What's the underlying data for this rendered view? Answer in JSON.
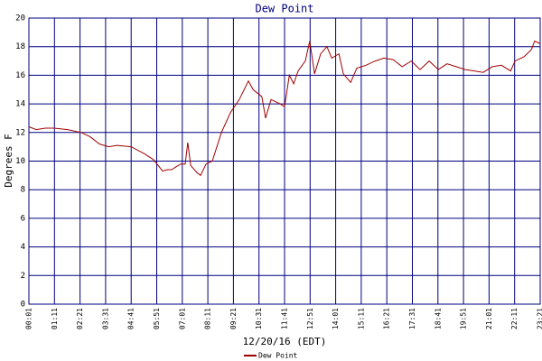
{
  "chart_data": {
    "type": "line",
    "title": "Dew Point",
    "y_label": "Degrees F",
    "x_label": "12/20/16 (EDT)",
    "xlim": [
      1,
      1401
    ],
    "ylim": [
      0,
      20
    ],
    "xticks": [
      {
        "value": 1,
        "label": "00:01"
      },
      {
        "value": 71,
        "label": "01:11"
      },
      {
        "value": 141,
        "label": "02:21"
      },
      {
        "value": 211,
        "label": "03:31"
      },
      {
        "value": 281,
        "label": "04:41"
      },
      {
        "value": 351,
        "label": "05:51"
      },
      {
        "value": 421,
        "label": "07:01"
      },
      {
        "value": 491,
        "label": "08:11"
      },
      {
        "value": 561,
        "label": "09:21"
      },
      {
        "value": 631,
        "label": "10:31"
      },
      {
        "value": 701,
        "label": "11:41"
      },
      {
        "value": 771,
        "label": "12:51"
      },
      {
        "value": 841,
        "label": "14:01"
      },
      {
        "value": 911,
        "label": "15:11"
      },
      {
        "value": 981,
        "label": "16:21"
      },
      {
        "value": 1051,
        "label": "17:31"
      },
      {
        "value": 1121,
        "label": "18:41"
      },
      {
        "value": 1191,
        "label": "19:51"
      },
      {
        "value": 1261,
        "label": "21:01"
      },
      {
        "value": 1331,
        "label": "22:11"
      },
      {
        "value": 1401,
        "label": "23:21"
      }
    ],
    "yticks": [
      0,
      2,
      4,
      6,
      8,
      10,
      12,
      14,
      16,
      18,
      20
    ],
    "grid": true,
    "legend": "bottom",
    "x": [
      1,
      21,
      46,
      70,
      107,
      144,
      169,
      194,
      219,
      243,
      281,
      318,
      342,
      355,
      367,
      380,
      392,
      404,
      417,
      429,
      436,
      444,
      461,
      471,
      486,
      503,
      528,
      553,
      577,
      602,
      615,
      639,
      649,
      664,
      689,
      701,
      714,
      726,
      738,
      758,
      770,
      783,
      800,
      817,
      830,
      850,
      862,
      882,
      899,
      924,
      949,
      973,
      998,
      1023,
      1048,
      1072,
      1097,
      1122,
      1146,
      1171,
      1196,
      1221,
      1245,
      1270,
      1295,
      1320,
      1332,
      1357,
      1377,
      1386,
      1401
    ],
    "series": [
      {
        "name": "Dew Point",
        "color": "#a00000",
        "values": [
          12.4,
          12.2,
          12.3,
          12.3,
          12.2,
          12.0,
          11.7,
          11.2,
          11.0,
          11.1,
          11.0,
          10.5,
          10.1,
          9.7,
          9.3,
          9.4,
          9.4,
          9.6,
          9.8,
          9.8,
          11.3,
          9.7,
          9.2,
          9.0,
          9.8,
          10.0,
          12.0,
          13.4,
          14.3,
          15.6,
          15.0,
          14.5,
          13.0,
          14.3,
          14.0,
          13.8,
          16.0,
          15.4,
          16.3,
          17.0,
          18.4,
          16.1,
          17.5,
          18.0,
          17.2,
          17.5,
          16.1,
          15.5,
          16.5,
          16.7,
          17.0,
          17.2,
          17.1,
          16.6,
          17.0,
          16.4,
          17.0,
          16.4,
          16.8,
          16.6,
          16.4,
          16.3,
          16.2,
          16.6,
          16.7,
          16.3,
          17.0,
          17.3,
          17.8,
          18.4,
          18.2
        ]
      }
    ]
  }
}
